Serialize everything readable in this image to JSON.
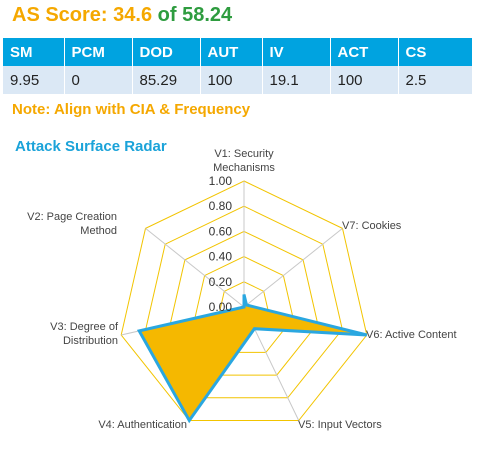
{
  "header": {
    "label": "AS Score:",
    "score": "34.6",
    "of": "of 58.24"
  },
  "metrics": {
    "headers": [
      "SM",
      "PCM",
      "DOD",
      "AUT",
      "IV",
      "ACT",
      "CS"
    ],
    "values": [
      "9.95",
      "0",
      "85.29",
      "100",
      "19.1",
      "100",
      "2.5"
    ]
  },
  "note": "Note: Align with CIA & Frequency",
  "chart_data": {
    "type": "radar",
    "title": "Attack Surface Radar",
    "axes": [
      [
        "V1: Security",
        "Mechanisms"
      ],
      [
        "V7: Cookies"
      ],
      [
        "V6: Active Content"
      ],
      [
        "V5: Input Vectors"
      ],
      [
        "V4: Authentication"
      ],
      [
        "V3: Degree of",
        "Distribution"
      ],
      [
        "V2: Page Creation",
        "Method"
      ]
    ],
    "values": [
      0.0995,
      0.025,
      1.0,
      0.191,
      1.0,
      0.8529,
      0.0
    ],
    "range": [
      0,
      1
    ],
    "ticks": [
      "0.00",
      "0.20",
      "0.40",
      "0.60",
      "0.80",
      "1.00"
    ],
    "colors": {
      "grid": "#f2c400",
      "spoke": "#c8c8c8",
      "fill": "#f5b800",
      "stroke": "#2aa7e0"
    }
  }
}
